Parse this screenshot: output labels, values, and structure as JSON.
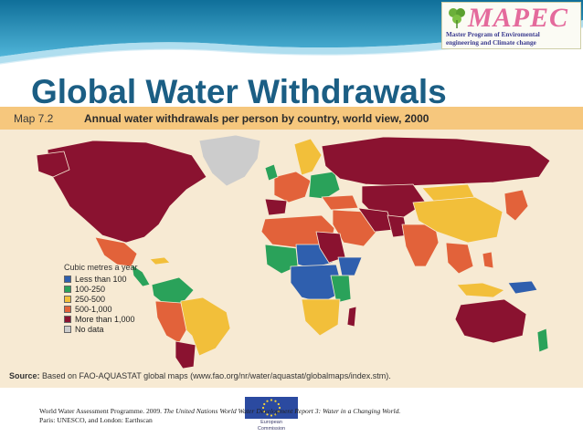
{
  "slide_title": "Global Water Withdrawals",
  "logo": {
    "mark": "MAPEC",
    "subtitle_line1": "Master Program of Enviromental",
    "subtitle_line2": "engineering and Climate change"
  },
  "map": {
    "label": "Map 7.2",
    "heading": "Annual water withdrawals per person by country, world view, 2000",
    "legend": {
      "title": "Cubic metres a year",
      "items": [
        {
          "label": "Less than 100",
          "color": "#2f5fae"
        },
        {
          "label": "100-250",
          "color": "#2aa25a"
        },
        {
          "label": "250-500",
          "color": "#f2bf3a"
        },
        {
          "label": "500-1,000",
          "color": "#e2623a"
        },
        {
          "label": "More than 1,000",
          "color": "#8a1230"
        },
        {
          "label": "No data",
          "color": "#cccccc"
        }
      ]
    },
    "source_label": "Source:",
    "source_text": "Based on FAO-AQUASTAT global maps (www.fao.org/nr/water/aquastat/globalmaps/index.stm)."
  },
  "citation": {
    "part1": "World Water Assessment Programme. 2009.",
    "book": "The United Nations World Water Development Report 3: Water in a Changing World.",
    "line2": "Paris: UNESCO, and London: Earthscan"
  },
  "eu_logo": {
    "line1": "European",
    "line2": "Commission"
  }
}
